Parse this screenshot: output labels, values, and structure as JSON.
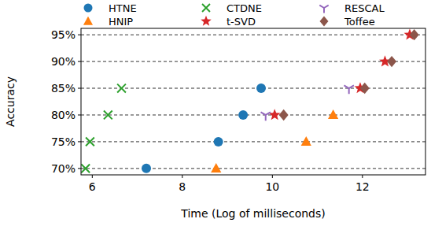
{
  "chart_data": {
    "type": "scatter",
    "x_label": "Time (Log of milliseconds)",
    "y_label": "Accuracy",
    "xlim": [
      5.75,
      13.4
    ],
    "ylim": [
      68.8,
      96.2
    ],
    "xticks": [
      6,
      8,
      10,
      12
    ],
    "yticks": [
      {
        "value": 70,
        "label": "70%"
      },
      {
        "value": 75,
        "label": "75%"
      },
      {
        "value": 80,
        "label": "80%"
      },
      {
        "value": 85,
        "label": "85%"
      },
      {
        "value": 90,
        "label": "90%"
      },
      {
        "value": 95,
        "label": "95%"
      }
    ],
    "grid": true,
    "legend": "top",
    "series": [
      {
        "name": "HTNE",
        "color": "#1f77b4",
        "marker": "circle",
        "x": [
          7.2,
          8.8,
          9.35,
          9.75
        ],
        "values": [
          70,
          75,
          80,
          85
        ]
      },
      {
        "name": "HNIP",
        "color": "#ff7f0e",
        "marker": "triangle",
        "x": [
          8.75,
          10.75,
          11.35
        ],
        "values": [
          70,
          75,
          80
        ]
      },
      {
        "name": "CTDNE",
        "color": "#2ca02c",
        "marker": "x",
        "x": [
          5.85,
          5.95,
          6.35,
          6.65
        ],
        "values": [
          70,
          75,
          80,
          85
        ]
      },
      {
        "name": "t-SVD",
        "color": "#d62728",
        "marker": "star",
        "x": [
          10.05,
          11.95,
          12.5,
          13.05
        ],
        "values": [
          80,
          85,
          90,
          95
        ]
      },
      {
        "name": "RESCAL",
        "color": "#9467bd",
        "marker": "tri_up",
        "x": [
          9.85,
          11.7
        ],
        "values": [
          80,
          85
        ]
      },
      {
        "name": "Toffee",
        "color": "#8c564b",
        "marker": "diamond",
        "x": [
          10.25,
          12.05,
          12.65,
          13.15
        ],
        "values": [
          80,
          85,
          90,
          95
        ]
      }
    ]
  }
}
